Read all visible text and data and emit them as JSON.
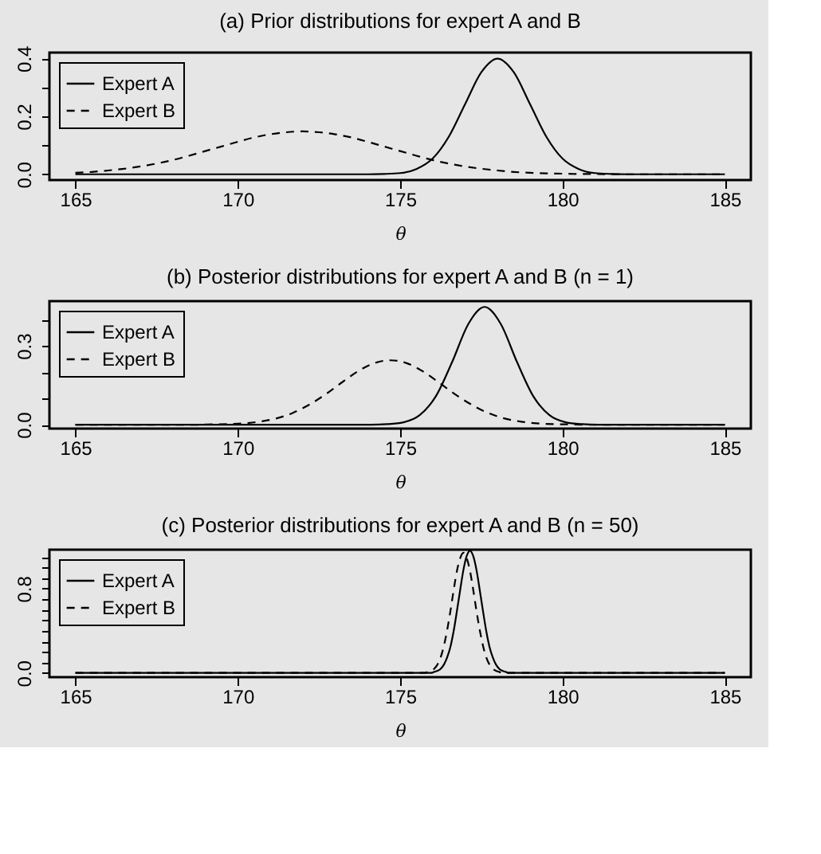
{
  "chart_data": [
    {
      "type": "line",
      "title": "(a) Prior distributions for expert A and B",
      "xlabel": "θ",
      "xlim": [
        164.2,
        185.8
      ],
      "xticks": [
        165,
        170,
        175,
        180,
        185
      ],
      "ylim": [
        -0.02,
        0.42
      ],
      "yticks": [
        {
          "value": 0,
          "label": "0.0"
        },
        {
          "value": 0.1,
          "label": null
        },
        {
          "value": 0.2,
          "label": "0.2"
        },
        {
          "value": 0.3,
          "label": null
        },
        {
          "value": 0.4,
          "label": "0.4"
        }
      ],
      "grid": false,
      "legend": "top left",
      "marker": "none",
      "series": [
        {
          "name": "Expert A",
          "color": "#000000",
          "line_style": "solid",
          "x": [
            165,
            165.5,
            166,
            166.5,
            167,
            167.5,
            168,
            168.5,
            169,
            169.5,
            170,
            170.5,
            171,
            171.5,
            172,
            172.5,
            173,
            173.5,
            174,
            174.5,
            175,
            175.5,
            176,
            176.5,
            177,
            177.5,
            178,
            178.5,
            179,
            179.5,
            180,
            180.5,
            181,
            181.5,
            182,
            182.5,
            183,
            183.5,
            184,
            184.5,
            185
          ],
          "values": [
            0,
            0,
            0,
            0,
            0,
            0,
            0,
            0,
            0,
            0,
            0,
            0,
            0,
            0,
            0,
            0,
            0,
            0,
            0,
            0.001,
            0.004,
            0.018,
            0.054,
            0.13,
            0.242,
            0.352,
            0.399,
            0.352,
            0.242,
            0.13,
            0.054,
            0.018,
            0.004,
            0.001,
            0,
            0,
            0,
            0,
            0,
            0,
            0
          ]
        },
        {
          "name": "Expert B",
          "color": "#000000",
          "line_style": "dashed",
          "x": [
            165,
            165.5,
            166,
            166.5,
            167,
            167.5,
            168,
            168.5,
            169,
            169.5,
            170,
            170.5,
            171,
            171.5,
            172,
            172.5,
            173,
            173.5,
            174,
            174.5,
            175,
            175.5,
            176,
            176.5,
            177,
            177.5,
            178,
            178.5,
            179,
            179.5,
            180,
            180.5,
            181,
            181.5,
            182,
            182.5,
            183,
            183.5,
            184,
            184.5,
            185
          ],
          "values": [
            0.005,
            0.008,
            0.013,
            0.019,
            0.027,
            0.037,
            0.049,
            0.064,
            0.08,
            0.096,
            0.112,
            0.127,
            0.138,
            0.145,
            0.148,
            0.145,
            0.138,
            0.127,
            0.112,
            0.096,
            0.08,
            0.064,
            0.049,
            0.037,
            0.027,
            0.019,
            0.013,
            0.008,
            0.005,
            0.003,
            0.002,
            0.001,
            0.001,
            0,
            0,
            0,
            0,
            0,
            0,
            0,
            0
          ]
        }
      ]
    },
    {
      "type": "line",
      "title": "(b) Posterior distributions for expert A and B (n = 1)",
      "xlabel": "θ",
      "xlim": [
        164.2,
        185.8
      ],
      "xticks": [
        165,
        170,
        175,
        180,
        185
      ],
      "ylim": [
        -0.015,
        0.47
      ],
      "yticks": [
        {
          "value": 0,
          "label": "0.0"
        },
        {
          "value": 0.1,
          "label": null
        },
        {
          "value": 0.2,
          "label": null
        },
        {
          "value": 0.3,
          "label": "0.3"
        },
        {
          "value": 0.4,
          "label": null
        }
      ],
      "grid": false,
      "legend": "top left",
      "marker": "none",
      "series": [
        {
          "name": "Expert A",
          "color": "#000000",
          "line_style": "solid",
          "x": [
            165,
            174.1,
            174.6,
            175.1,
            175.6,
            176.1,
            176.6,
            177.1,
            177.6,
            178.1,
            178.6,
            179.1,
            179.6,
            180.1,
            180.6,
            181.1,
            185
          ],
          "values": [
            0,
            0,
            0.002,
            0.009,
            0.036,
            0.108,
            0.238,
            0.383,
            0.448,
            0.383,
            0.238,
            0.108,
            0.036,
            0.009,
            0.002,
            0,
            0
          ]
        },
        {
          "name": "Expert B",
          "color": "#000000",
          "line_style": "dashed",
          "x": [
            165,
            168.7,
            169.2,
            169.7,
            170.2,
            170.7,
            171.2,
            171.7,
            172.2,
            172.7,
            173.2,
            173.7,
            174.2,
            174.7,
            175.2,
            175.7,
            176.2,
            176.7,
            177.2,
            177.7,
            178.2,
            178.7,
            179.2,
            179.7,
            180.2,
            180.7,
            185
          ],
          "values": [
            0,
            0,
            0.001,
            0.002,
            0.005,
            0.012,
            0.024,
            0.045,
            0.076,
            0.115,
            0.16,
            0.203,
            0.234,
            0.245,
            0.234,
            0.203,
            0.16,
            0.115,
            0.076,
            0.045,
            0.024,
            0.012,
            0.005,
            0.002,
            0.001,
            0,
            0
          ]
        }
      ]
    },
    {
      "type": "line",
      "title": "(c) Posterior distributions for expert A and B (n = 50)",
      "xlabel": "θ",
      "xlim": [
        164.2,
        185.8
      ],
      "xticks": [
        165,
        170,
        175,
        180,
        185
      ],
      "ylim": [
        -0.04,
        1.17
      ],
      "yticks": [
        {
          "value": 0,
          "label": "0.0"
        },
        {
          "value": 0.1,
          "label": null
        },
        {
          "value": 0.2,
          "label": null
        },
        {
          "value": 0.3,
          "label": null
        },
        {
          "value": 0.4,
          "label": null
        },
        {
          "value": 0.5,
          "label": null
        },
        {
          "value": 0.6,
          "label": null
        },
        {
          "value": 0.7,
          "label": null
        },
        {
          "value": 0.8,
          "label": "0.8"
        },
        {
          "value": 0.9,
          "label": null
        },
        {
          "value": 1.0,
          "label": null
        },
        {
          "value": 1.1,
          "label": null
        }
      ],
      "grid": false,
      "legend": "top left",
      "marker": "none",
      "series": [
        {
          "name": "Expert A",
          "color": "#000000",
          "line_style": "solid",
          "x": [
            165,
            175.75,
            175.85,
            175.95,
            176.05,
            176.15,
            176.25,
            176.35,
            176.45,
            176.55,
            176.65,
            176.75,
            176.85,
            176.95,
            177.05,
            177.15,
            177.25,
            177.35,
            177.45,
            177.55,
            177.65,
            177.75,
            177.85,
            177.95,
            178.05,
            178.15,
            178.25,
            178.35,
            178.45,
            178.55,
            185
          ],
          "values": [
            0,
            0,
            0,
            0,
            0.01,
            0.02,
            0.04,
            0.08,
            0.15,
            0.25,
            0.4,
            0.59,
            0.79,
            0.98,
            1.11,
            1.16,
            1.11,
            0.98,
            0.79,
            0.59,
            0.4,
            0.25,
            0.15,
            0.08,
            0.04,
            0.02,
            0.01,
            0,
            0,
            0,
            0
          ]
        },
        {
          "name": "Expert B",
          "color": "#000000",
          "line_style": "dashed",
          "x": [
            165,
            175.55,
            175.65,
            175.75,
            175.85,
            175.95,
            176.05,
            176.15,
            176.25,
            176.35,
            176.45,
            176.55,
            176.65,
            176.75,
            176.85,
            176.95,
            177.05,
            177.15,
            177.25,
            177.35,
            177.45,
            177.55,
            177.65,
            177.75,
            177.85,
            177.95,
            178.05,
            178.15,
            178.25,
            178.35,
            185
          ],
          "values": [
            0,
            0,
            0,
            0,
            0.01,
            0.02,
            0.04,
            0.08,
            0.15,
            0.26,
            0.41,
            0.59,
            0.79,
            0.97,
            1.09,
            1.14,
            1.09,
            0.97,
            0.79,
            0.59,
            0.41,
            0.26,
            0.15,
            0.08,
            0.04,
            0.02,
            0.01,
            0,
            0,
            0,
            0
          ]
        }
      ]
    }
  ]
}
